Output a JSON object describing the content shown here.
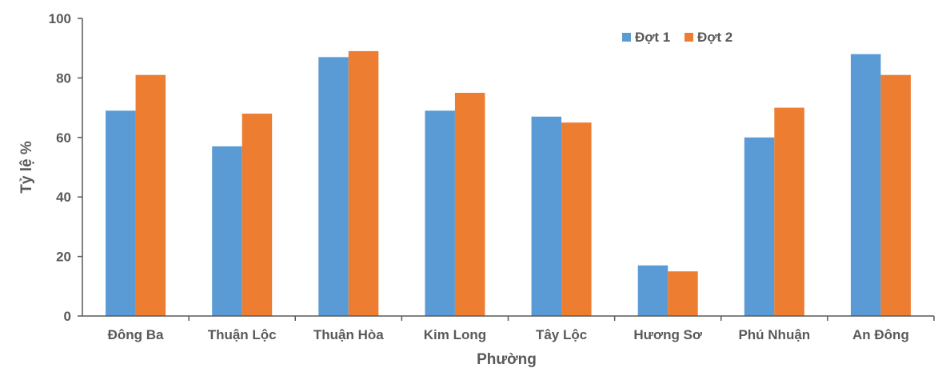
{
  "chart_data": {
    "type": "bar",
    "title": "",
    "xlabel": "Phường",
    "ylabel": "Tỷ lệ %",
    "ylim": [
      0,
      100
    ],
    "yticks": [
      0,
      20,
      40,
      60,
      80,
      100
    ],
    "grid": false,
    "legend_position": "top-right",
    "categories": [
      "Đông Ba",
      "Thuận Lộc",
      "Thuận Hòa",
      "Kim Long",
      "Tây Lộc",
      "Hương Sơ",
      "Phú Nhuận",
      "An Đông"
    ],
    "series": [
      {
        "name": "Đợt 1",
        "color": "#5B9BD5",
        "values": [
          69,
          57,
          87,
          69,
          67,
          17,
          60,
          88
        ]
      },
      {
        "name": "Đợt 2",
        "color": "#ED7D31",
        "values": [
          81,
          68,
          89,
          75,
          65,
          15,
          70,
          81
        ]
      }
    ]
  }
}
